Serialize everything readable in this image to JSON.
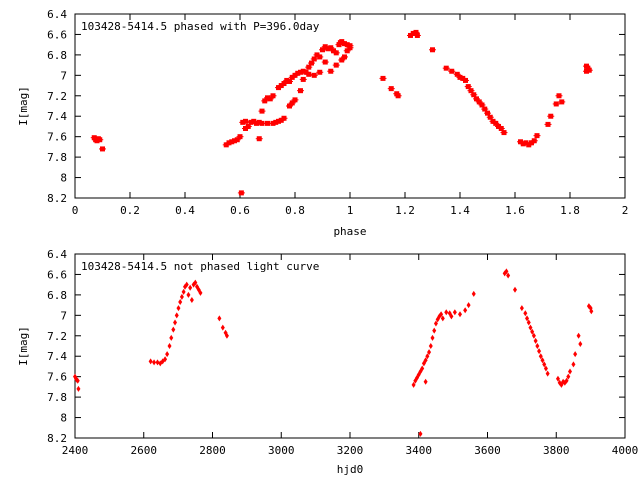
{
  "chart_data": [
    {
      "type": "scatter",
      "title": "103428-5414.5 phased with P=396.0day",
      "xlabel": "phase",
      "ylabel": "I[mag]",
      "xlim": [
        0,
        2
      ],
      "ylim": [
        6.4,
        8.2
      ],
      "y_inverted": true,
      "grid": false,
      "legend": "none",
      "x_ticks": [
        "0",
        "0.2",
        "0.4",
        "0.6",
        "0.8",
        "1",
        "1.2",
        "1.4",
        "1.6",
        "1.8",
        "2"
      ],
      "y_ticks": [
        "6.4",
        "6.6",
        "6.8",
        "7",
        "7.2",
        "7.4",
        "7.6",
        "7.8",
        "8",
        "8.2"
      ],
      "marker_color": "#ff0000",
      "series": [
        {
          "points": [
            [
              0.07,
              7.61
            ],
            [
              0.075,
              7.63
            ],
            [
              0.08,
              7.64
            ],
            [
              0.085,
              7.62
            ],
            [
              0.09,
              7.63
            ],
            [
              0.1,
              7.72
            ],
            [
              0.55,
              7.68
            ],
            [
              0.56,
              7.66
            ],
            [
              0.57,
              7.65
            ],
            [
              0.58,
              7.64
            ],
            [
              0.59,
              7.63
            ],
            [
              0.6,
              7.6
            ],
            [
              0.605,
              8.15
            ],
            [
              0.61,
              7.46
            ],
            [
              0.62,
              7.52
            ],
            [
              0.62,
              7.45
            ],
            [
              0.63,
              7.5
            ],
            [
              0.64,
              7.46
            ],
            [
              0.65,
              7.45
            ],
            [
              0.66,
              7.47
            ],
            [
              0.67,
              7.62
            ],
            [
              0.67,
              7.46
            ],
            [
              0.68,
              7.47
            ],
            [
              0.68,
              7.35
            ],
            [
              0.69,
              7.25
            ],
            [
              0.7,
              7.22
            ],
            [
              0.7,
              7.47
            ],
            [
              0.71,
              7.23
            ],
            [
              0.72,
              7.47
            ],
            [
              0.72,
              7.2
            ],
            [
              0.73,
              7.46
            ],
            [
              0.74,
              7.45
            ],
            [
              0.74,
              7.12
            ],
            [
              0.75,
              7.44
            ],
            [
              0.75,
              7.1
            ],
            [
              0.76,
              7.42
            ],
            [
              0.76,
              7.08
            ],
            [
              0.77,
              7.05
            ],
            [
              0.78,
              7.3
            ],
            [
              0.78,
              7.06
            ],
            [
              0.79,
              7.27
            ],
            [
              0.79,
              7.02
            ],
            [
              0.8,
              7.0
            ],
            [
              0.8,
              7.24
            ],
            [
              0.81,
              6.98
            ],
            [
              0.82,
              7.15
            ],
            [
              0.82,
              6.97
            ],
            [
              0.83,
              7.04
            ],
            [
              0.83,
              6.96
            ],
            [
              0.84,
              6.97
            ],
            [
              0.85,
              6.92
            ],
            [
              0.85,
              6.99
            ],
            [
              0.86,
              6.88
            ],
            [
              0.87,
              6.84
            ],
            [
              0.87,
              7.0
            ],
            [
              0.88,
              6.8
            ],
            [
              0.89,
              6.82
            ],
            [
              0.89,
              6.97
            ],
            [
              0.9,
              6.75
            ],
            [
              0.91,
              6.72
            ],
            [
              0.91,
              6.87
            ],
            [
              0.92,
              6.74
            ],
            [
              0.93,
              6.73
            ],
            [
              0.93,
              6.96
            ],
            [
              0.94,
              6.76
            ],
            [
              0.95,
              6.78
            ],
            [
              0.95,
              6.9
            ],
            [
              0.96,
              6.7
            ],
            [
              0.965,
              6.68
            ],
            [
              0.97,
              6.85
            ],
            [
              0.97,
              6.67
            ],
            [
              0.98,
              6.82
            ],
            [
              0.98,
              6.69
            ],
            [
              0.99,
              6.76
            ],
            [
              0.99,
              6.7
            ],
            [
              1.0,
              6.73
            ],
            [
              1.0,
              6.71
            ],
            [
              1.12,
              7.03
            ],
            [
              1.15,
              7.13
            ],
            [
              1.17,
              7.18
            ],
            [
              1.175,
              7.2
            ],
            [
              1.22,
              6.61
            ],
            [
              1.23,
              6.59
            ],
            [
              1.24,
              6.58
            ],
            [
              1.245,
              6.61
            ],
            [
              1.3,
              6.75
            ],
            [
              1.35,
              6.93
            ],
            [
              1.37,
              6.96
            ],
            [
              1.39,
              6.99
            ],
            [
              1.4,
              7.02
            ],
            [
              1.41,
              7.03
            ],
            [
              1.42,
              7.05
            ],
            [
              1.43,
              7.11
            ],
            [
              1.44,
              7.15
            ],
            [
              1.45,
              7.19
            ],
            [
              1.46,
              7.23
            ],
            [
              1.47,
              7.26
            ],
            [
              1.48,
              7.29
            ],
            [
              1.49,
              7.33
            ],
            [
              1.5,
              7.37
            ],
            [
              1.51,
              7.41
            ],
            [
              1.52,
              7.45
            ],
            [
              1.53,
              7.47
            ],
            [
              1.54,
              7.5
            ],
            [
              1.55,
              7.52
            ],
            [
              1.56,
              7.56
            ],
            [
              1.62,
              7.65
            ],
            [
              1.63,
              7.67
            ],
            [
              1.64,
              7.66
            ],
            [
              1.65,
              7.68
            ],
            [
              1.66,
              7.66
            ],
            [
              1.67,
              7.64
            ],
            [
              1.68,
              7.59
            ],
            [
              1.72,
              7.48
            ],
            [
              1.73,
              7.4
            ],
            [
              1.75,
              7.28
            ],
            [
              1.76,
              7.2
            ],
            [
              1.77,
              7.26
            ],
            [
              1.86,
              6.91
            ],
            [
              1.865,
              6.93
            ],
            [
              1.87,
              6.95
            ],
            [
              1.86,
              6.96
            ]
          ]
        }
      ]
    },
    {
      "type": "scatter",
      "title": "103428-5414.5 not phased light curve",
      "xlabel": "hjd0",
      "ylabel": "I[mag]",
      "xlim": [
        2400,
        4000
      ],
      "ylim": [
        6.4,
        8.2
      ],
      "y_inverted": true,
      "grid": false,
      "legend": "none",
      "x_ticks": [
        "2400",
        "2600",
        "2800",
        "3000",
        "3200",
        "3400",
        "3600",
        "3800",
        "4000"
      ],
      "y_ticks": [
        "6.4",
        "6.6",
        "6.8",
        "7",
        "7.2",
        "7.4",
        "7.6",
        "7.8",
        "8",
        "8.2"
      ],
      "marker_color": "#ff0000",
      "series": [
        {
          "points": [
            [
              2400,
              7.6
            ],
            [
              2403,
              7.62
            ],
            [
              2405,
              7.63
            ],
            [
              2408,
              7.64
            ],
            [
              2410,
              7.72
            ],
            [
              2620,
              7.45
            ],
            [
              2630,
              7.46
            ],
            [
              2640,
              7.46
            ],
            [
              2648,
              7.47
            ],
            [
              2655,
              7.45
            ],
            [
              2662,
              7.43
            ],
            [
              2668,
              7.38
            ],
            [
              2675,
              7.3
            ],
            [
              2680,
              7.22
            ],
            [
              2686,
              7.14
            ],
            [
              2691,
              7.07
            ],
            [
              2696,
              7.0
            ],
            [
              2701,
              6.93
            ],
            [
              2706,
              6.87
            ],
            [
              2711,
              6.82
            ],
            [
              2716,
              6.77
            ],
            [
              2720,
              6.72
            ],
            [
              2725,
              6.7
            ],
            [
              2730,
              6.8
            ],
            [
              2735,
              6.73
            ],
            [
              2740,
              6.85
            ],
            [
              2745,
              6.7
            ],
            [
              2750,
              6.68
            ],
            [
              2755,
              6.72
            ],
            [
              2760,
              6.75
            ],
            [
              2765,
              6.78
            ],
            [
              2820,
              7.03
            ],
            [
              2830,
              7.12
            ],
            [
              2838,
              7.17
            ],
            [
              2842,
              7.2
            ],
            [
              3385,
              7.68
            ],
            [
              3390,
              7.64
            ],
            [
              3395,
              7.61
            ],
            [
              3400,
              7.58
            ],
            [
              3405,
              7.55
            ],
            [
              3405,
              8.16
            ],
            [
              3410,
              7.52
            ],
            [
              3415,
              7.47
            ],
            [
              3420,
              7.44
            ],
            [
              3420,
              7.65
            ],
            [
              3425,
              7.4
            ],
            [
              3430,
              7.36
            ],
            [
              3435,
              7.3
            ],
            [
              3440,
              7.22
            ],
            [
              3445,
              7.15
            ],
            [
              3450,
              7.08
            ],
            [
              3455,
              7.04
            ],
            [
              3460,
              7.01
            ],
            [
              3465,
              6.99
            ],
            [
              3470,
              7.03
            ],
            [
              3480,
              6.97
            ],
            [
              3490,
              6.98
            ],
            [
              3495,
              7.01
            ],
            [
              3505,
              6.97
            ],
            [
              3520,
              6.99
            ],
            [
              3535,
              6.95
            ],
            [
              3545,
              6.9
            ],
            [
              3560,
              6.79
            ],
            [
              3650,
              6.59
            ],
            [
              3655,
              6.57
            ],
            [
              3660,
              6.61
            ],
            [
              3680,
              6.75
            ],
            [
              3700,
              6.93
            ],
            [
              3710,
              6.98
            ],
            [
              3715,
              7.03
            ],
            [
              3720,
              7.07
            ],
            [
              3725,
              7.12
            ],
            [
              3730,
              7.16
            ],
            [
              3735,
              7.2
            ],
            [
              3740,
              7.25
            ],
            [
              3745,
              7.3
            ],
            [
              3750,
              7.35
            ],
            [
              3755,
              7.4
            ],
            [
              3760,
              7.44
            ],
            [
              3765,
              7.48
            ],
            [
              3770,
              7.52
            ],
            [
              3775,
              7.57
            ],
            [
              3805,
              7.62
            ],
            [
              3810,
              7.66
            ],
            [
              3815,
              7.68
            ],
            [
              3820,
              7.65
            ],
            [
              3825,
              7.66
            ],
            [
              3830,
              7.64
            ],
            [
              3835,
              7.6
            ],
            [
              3840,
              7.55
            ],
            [
              3850,
              7.48
            ],
            [
              3855,
              7.38
            ],
            [
              3865,
              7.2
            ],
            [
              3870,
              7.28
            ],
            [
              3895,
              6.91
            ],
            [
              3900,
              6.93
            ],
            [
              3902,
              6.96
            ]
          ]
        }
      ]
    }
  ]
}
